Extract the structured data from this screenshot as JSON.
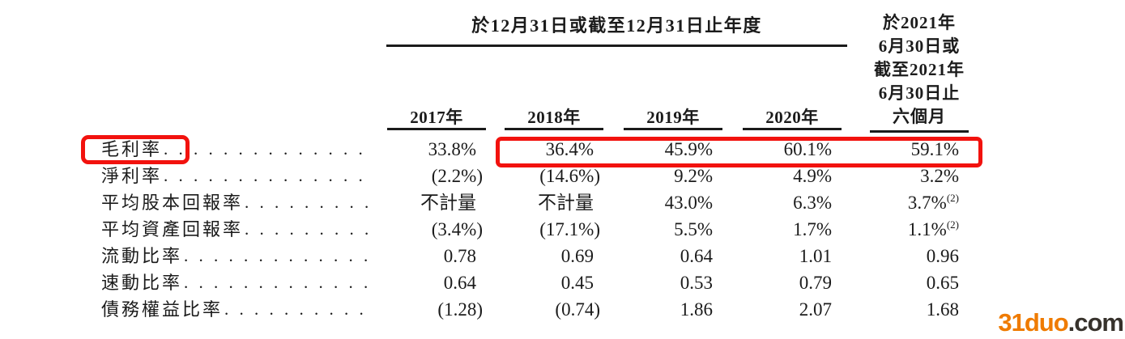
{
  "header": {
    "period_span_label": "於12月31日或截至12月31日止年度",
    "interim_period_lines": [
      "於2021年",
      "6月30日或",
      "截至2021年",
      "6月30日止",
      "六個月"
    ],
    "year_columns": [
      "2017年",
      "2018年",
      "2019年",
      "2020年"
    ]
  },
  "table": {
    "rows": [
      {
        "label": "毛利率",
        "values": [
          "33.8%",
          "36.4%",
          "45.9%",
          "60.1%",
          "59.1%"
        ],
        "sups": [
          "",
          "",
          "",
          "",
          ""
        ],
        "highlighted": true
      },
      {
        "label": "淨利率",
        "values": [
          "(2.2%)",
          "(14.6%)",
          "9.2%",
          "4.9%",
          "3.2%"
        ],
        "sups": [
          "",
          "",
          "",
          "",
          ""
        ],
        "highlighted": false
      },
      {
        "label": "平均股本回報率",
        "values": [
          "不計量",
          "不計量",
          "43.0%",
          "6.3%",
          "3.7%"
        ],
        "sups": [
          "",
          "",
          "",
          "",
          "(2)"
        ],
        "highlighted": false
      },
      {
        "label": "平均資產回報率",
        "values": [
          "(3.4%)",
          "(17.1%)",
          "5.5%",
          "1.7%",
          "1.1%"
        ],
        "sups": [
          "",
          "",
          "",
          "",
          "(2)"
        ],
        "highlighted": false
      },
      {
        "label": "流動比率",
        "values": [
          "0.78",
          "0.69",
          "0.64",
          "1.01",
          "0.96"
        ],
        "sups": [
          "",
          "",
          "",
          "",
          ""
        ],
        "highlighted": false
      },
      {
        "label": "速動比率",
        "values": [
          "0.64",
          "0.45",
          "0.53",
          "0.79",
          "0.65"
        ],
        "sups": [
          "",
          "",
          "",
          "",
          ""
        ],
        "highlighted": false
      },
      {
        "label": "債務權益比率",
        "values": [
          "(1.28)",
          "(0.74)",
          "1.86",
          "2.07",
          "1.68"
        ],
        "sups": [
          "",
          "",
          "",
          "",
          ""
        ],
        "highlighted": false
      }
    ]
  },
  "annotations": {
    "highlight_color": "#f2120e",
    "highlighted_row_label": "毛利率",
    "highlighted_value_columns": [
      "2018年",
      "2019年",
      "2020年",
      "2021年六個月"
    ]
  },
  "watermark": {
    "brand": "31duo",
    "tld": ".com",
    "brand_color": "#ef7b00",
    "tld_color": "#37322c"
  }
}
